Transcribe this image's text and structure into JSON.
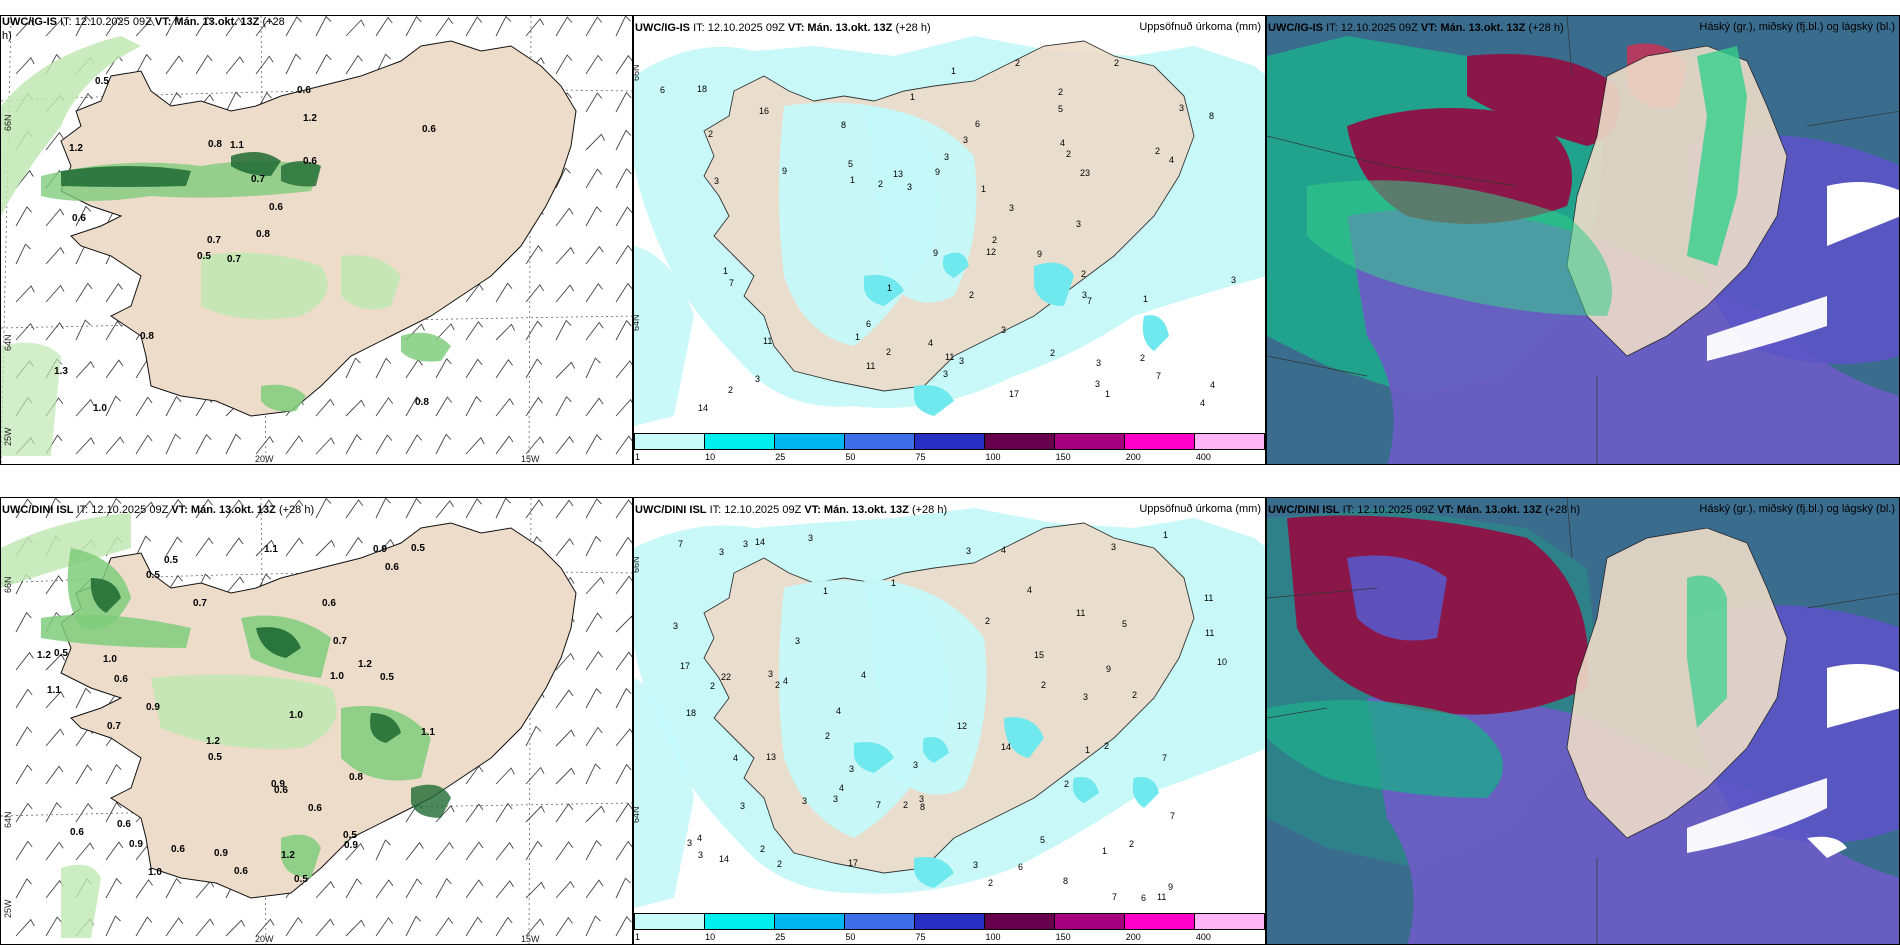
{
  "rows": [
    {
      "wind_title_model": "UWC/IG-IS",
      "wind_title_it": "IT: 12.10.2025 09Z",
      "wind_title_vt": "VT: Mán. 13.okt. 13Z",
      "wind_title_lead": "(+28",
      "wind_title_lead2": "h)",
      "precip_title_model": "UWC/IG-IS",
      "precip_title_it": "IT: 12.10.2025 09Z",
      "precip_title_vt": "VT: Mán. 13.okt. 13Z",
      "precip_title_lead": "(+28 h)",
      "precip_right": "Uppsöfnuð úrkoma (mm)",
      "cloud_title_model": "UWC/IG-IS",
      "cloud_title_it": "IT: 12.10.2025 09Z",
      "cloud_title_vt": "VT: Mán. 13.okt. 13Z",
      "cloud_title_lead": "(+28 h)",
      "cloud_right": "Háský (gr.), miðský (fj.bl.) og lágský (bl.)",
      "lon_labels": [
        "20W",
        "15W"
      ],
      "lat_labels": [
        "66N",
        "64N",
        "25W"
      ],
      "precip_lat_labels": [
        "66N",
        "64N"
      ],
      "wind_values": [
        "0.7",
        "1.2",
        "0.7",
        "1.3",
        "0.6",
        "0.8",
        "0.6",
        "1.1",
        "1.2",
        "0.8",
        "0.5",
        "0.8",
        "0.6",
        "0.6",
        "0.5",
        "0.6",
        "1.0",
        "0.8",
        "0.7"
      ],
      "precip_values": [
        "2",
        "1",
        "2",
        "2",
        "1",
        "2",
        "2",
        "2",
        "3",
        "1",
        "4",
        "1",
        "2",
        "1",
        "2",
        "5",
        "3",
        "7",
        "9",
        "8",
        "6",
        "3",
        "3",
        "9",
        "7",
        "5",
        "13",
        "3",
        "4",
        "3",
        "7",
        "1",
        "6",
        "14",
        "12",
        "17",
        "11",
        "23",
        "3",
        "4",
        "9",
        "6",
        "8",
        "11",
        "3",
        "2",
        "3",
        "3",
        "3",
        "4",
        "2",
        "9",
        "18",
        "3",
        "11",
        "16",
        "2",
        "3",
        "3",
        "2",
        "1",
        "4",
        "2",
        "3",
        "1",
        "1",
        "2"
      ]
    },
    {
      "wind_title_model": "UWC/DINI ISL",
      "wind_title_it": "IT: 12.10.2025 09Z",
      "wind_title_vt": "VT: Mán. 13.okt. 13Z",
      "wind_title_lead": "(+28 h)",
      "wind_title_lead2": "",
      "precip_title_model": "UWC/DINI ISL",
      "precip_title_it": "IT: 12.10.2025 09Z",
      "precip_title_vt": "VT: Mán. 13.okt. 13Z",
      "precip_title_lead": "(+28 h)",
      "precip_right": "Uppsöfnuð úrkoma (mm)",
      "cloud_title_model": "UWC/DINI ISL",
      "cloud_title_it": "IT: 12.10.2025 09Z",
      "cloud_title_vt": "VT: Mán. 13.okt. 13Z",
      "cloud_title_lead": "(+28 h)",
      "cloud_right": "Háský (gr.), miðský (fj.bl.) og lágský (bl.)",
      "lon_labels": [
        "20W",
        "15W"
      ],
      "lat_labels": [
        "66N",
        "64N",
        "25W"
      ],
      "precip_lat_labels": [
        "66N",
        "64N"
      ],
      "wind_values": [
        "0.5",
        "0.5",
        "0.6",
        "1.0",
        "1.2",
        "1.2",
        "1.1",
        "0.9",
        "0.5",
        "0.9",
        "0.6",
        "1.2",
        "1.2",
        "0.9",
        "1.0",
        "0.9",
        "1.1",
        "0.6",
        "0.8",
        "0.5",
        "0.5",
        "0.6",
        "1.0",
        "0.9",
        "1.0",
        "0.7",
        "0.7",
        "0.6",
        "0.6",
        "0.7",
        "0.6",
        "0.5",
        "0.6",
        "0.6",
        "0.5",
        "0.9",
        "1.1",
        "0.5"
      ],
      "precip_values": [
        "3",
        "2",
        "3",
        "2",
        "11",
        "1",
        "2",
        "2",
        "3",
        "3",
        "2",
        "3",
        "7",
        "7",
        "4",
        "5",
        "12",
        "10",
        "11",
        "4",
        "6",
        "4",
        "6",
        "3",
        "2",
        "2",
        "3",
        "4",
        "5",
        "3",
        "4",
        "7",
        "14",
        "7",
        "11",
        "17",
        "22",
        "14",
        "13",
        "17",
        "18",
        "9",
        "7",
        "8",
        "8",
        "3",
        "3",
        "3",
        "3",
        "4",
        "2",
        "9",
        "14",
        "3",
        "11",
        "15",
        "2",
        "3",
        "3",
        "2",
        "4",
        "1",
        "3",
        "1",
        "1",
        "2",
        "1",
        "2",
        "2",
        "3",
        "4",
        "3"
      ]
    }
  ],
  "colorbar": {
    "ticks": [
      "1",
      "10",
      "25",
      "50",
      "75",
      "100",
      "150",
      "200",
      "400"
    ],
    "colors": [
      "#c8fafa",
      "#00eeee",
      "#00b6f0",
      "#3f6fe8",
      "#2a2fc4",
      "#66004d",
      "#a5007d",
      "#ff00c8",
      "#ffb4f5"
    ]
  },
  "colors": {
    "land": "#eddcc9",
    "light_green": "#bfe8b2",
    "mid_green": "#7fcc7d",
    "dark_green": "#1f6a33",
    "precip_light": "#c5f8f8",
    "precip_mid": "#6fe8ee",
    "cloud_ocean": "#3a6c8e",
    "cloud_teal": "#1fa98c",
    "cloud_green": "#35d08b",
    "cloud_purple": "#6a5ec4",
    "cloud_maroon": "#8a1748"
  }
}
